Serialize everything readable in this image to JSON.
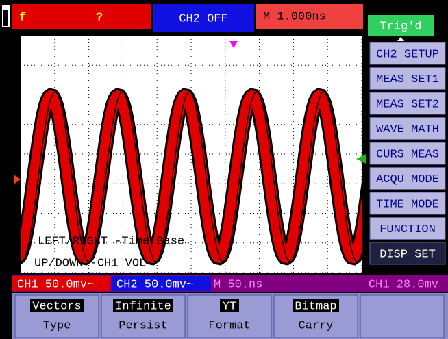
{
  "top_bar": {
    "source": "f",
    "value": "?",
    "ch2_status": "CH2 OFF",
    "timebase": "M 1.000ns",
    "trigger": "Trig'd"
  },
  "menu": {
    "items": [
      "CH2 SETUP",
      "MEAS SET1",
      "MEAS SET2",
      "WAVE MATH",
      "CURS MEAS",
      "ACQU MODE",
      "TIME MODE",
      "FUNCTION",
      "DISP SET"
    ]
  },
  "overlay": {
    "line1": "LEFT/RIGHT -Time Base",
    "line2": "UP/DOWN -CH1 VOL"
  },
  "status_bar": {
    "ch1_scale": "CH1 50.0mv~",
    "ch2_scale": "CH2 50.0mv~",
    "time_scale": "M 50.ns",
    "trigger_level": "CH1 28.0mv"
  },
  "softkeys": [
    {
      "value": "Vectors",
      "label": "Type"
    },
    {
      "value": "Infinite",
      "label": "Persist"
    },
    {
      "value": "YT",
      "label": "Format"
    },
    {
      "value": "Bitmap",
      "label": "Carry"
    }
  ]
}
